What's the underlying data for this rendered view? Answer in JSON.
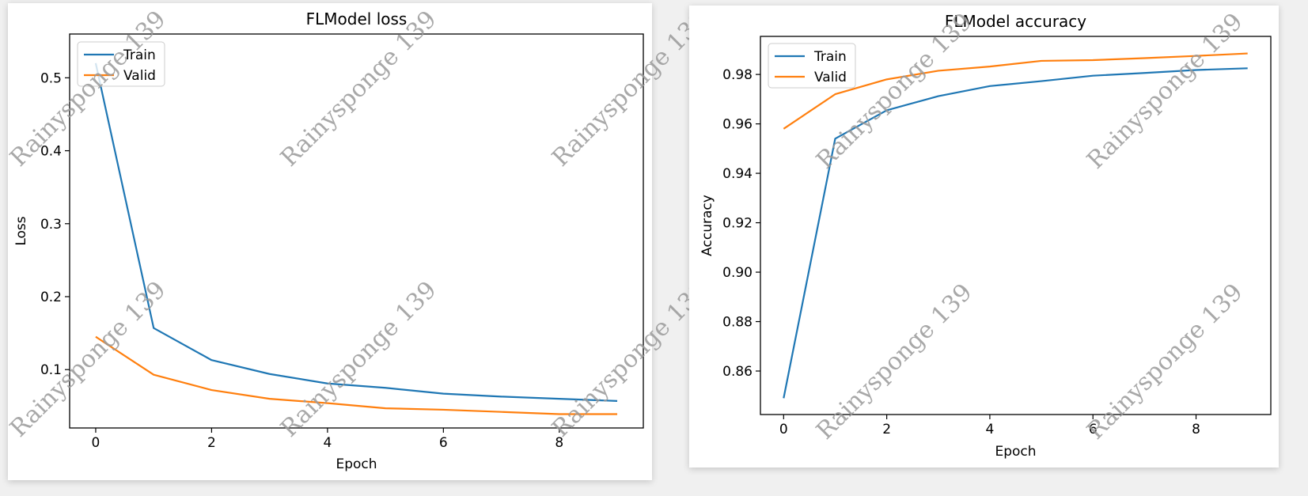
{
  "chart_data": [
    {
      "type": "line",
      "title": "FLModel loss",
      "xlabel": "Epoch",
      "ylabel": "Loss",
      "x": [
        0,
        1,
        2,
        3,
        4,
        5,
        6,
        7,
        8,
        9
      ],
      "xlim": [
        -0.45,
        9.45
      ],
      "ylim": [
        0.02,
        0.56
      ],
      "xticks": [
        0,
        2,
        4,
        6,
        8
      ],
      "yticks": [
        0.1,
        0.2,
        0.3,
        0.4,
        0.5
      ],
      "ytick_decimals": 1,
      "legend": "upper-left",
      "grid": false,
      "series": [
        {
          "name": "Train",
          "color": "#1f77b4",
          "values": [
            0.52,
            0.157,
            0.113,
            0.094,
            0.081,
            0.075,
            0.067,
            0.063,
            0.06,
            0.057
          ]
        },
        {
          "name": "Valid",
          "color": "#ff7f0e",
          "values": [
            0.145,
            0.093,
            0.072,
            0.06,
            0.054,
            0.047,
            0.045,
            0.042,
            0.039,
            0.039
          ]
        }
      ]
    },
    {
      "type": "line",
      "title": "FLModel accuracy",
      "xlabel": "Epoch",
      "ylabel": "Accuracy",
      "x": [
        0,
        1,
        2,
        3,
        4,
        5,
        6,
        7,
        8,
        9
      ],
      "xlim": [
        -0.45,
        9.45
      ],
      "ylim": [
        0.8424,
        0.9954
      ],
      "xticks": [
        0,
        2,
        4,
        6,
        8
      ],
      "yticks": [
        0.86,
        0.88,
        0.9,
        0.92,
        0.94,
        0.96,
        0.98
      ],
      "ytick_decimals": 2,
      "legend": "upper-left",
      "grid": false,
      "series": [
        {
          "name": "Train",
          "color": "#1f77b4",
          "values": [
            0.849,
            0.954,
            0.9655,
            0.9712,
            0.9753,
            0.9773,
            0.9795,
            0.9806,
            0.9818,
            0.9825
          ]
        },
        {
          "name": "Valid",
          "color": "#ff7f0e",
          "values": [
            0.958,
            0.972,
            0.978,
            0.9815,
            0.9832,
            0.9855,
            0.9858,
            0.9866,
            0.9875,
            0.9885
          ]
        }
      ]
    }
  ],
  "watermark": "Rainysponge 139"
}
